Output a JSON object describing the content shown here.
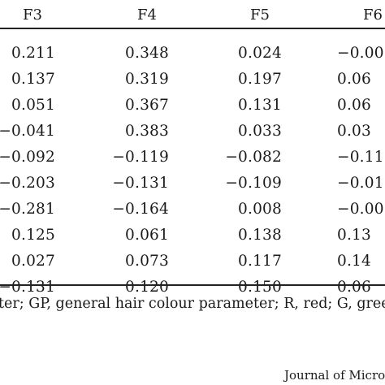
{
  "headers": [
    "F3",
    "F4",
    "F5",
    "F6"
  ],
  "rows": [
    [
      "0.211",
      "0.348",
      "0.024",
      "−0.00"
    ],
    [
      "0.137",
      "0.319",
      "0.197",
      "0.06"
    ],
    [
      "0.051",
      "0.367",
      "0.131",
      "0.06"
    ],
    [
      "−0.041",
      "0.383",
      "0.033",
      "0.03"
    ],
    [
      "−0.092",
      "−0.119",
      "−0.082",
      "−0.11"
    ],
    [
      "−0.203",
      "−0.131",
      "−0.109",
      "−0.01"
    ],
    [
      "−0.281",
      "−0.164",
      "0.008",
      "−0.00"
    ],
    [
      "0.125",
      "0.061",
      "0.138",
      "0.13"
    ],
    [
      "0.027",
      "0.073",
      "0.117",
      "0.14"
    ],
    [
      "−0.131",
      "0.120",
      "0.150",
      "0.06"
    ]
  ],
  "footnote": "ter; GP, general hair colour parameter; R, red; G, green",
  "journal": "Journal of Micro"
}
